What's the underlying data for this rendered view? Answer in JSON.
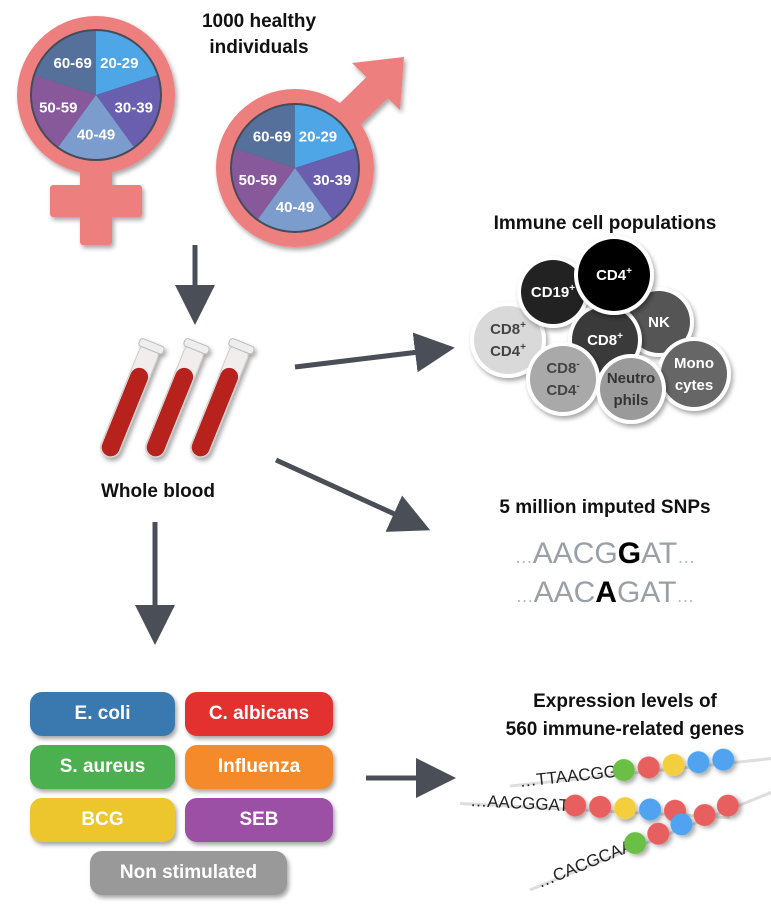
{
  "title": "1000 healthy individuals",
  "title_line1": "1000 healthy",
  "title_line2": "individuals",
  "age_groups": [
    "20-29",
    "30-39",
    "40-49",
    "50-59",
    "60-69"
  ],
  "age_colors": [
    "#4ea6e6",
    "#6a5eae",
    "#7b9ccd",
    "#87599a",
    "#55719b"
  ],
  "symbol_color": "#ee7f7f",
  "whole_blood": "Whole blood",
  "immune_title": "Immune cell populations",
  "cells": [
    {
      "name": "CD19",
      "sup": "+",
      "color": "#222222",
      "text": "#ffffff"
    },
    {
      "name": "CD4",
      "sup": "+",
      "color": "#000000",
      "text": "#ffffff"
    },
    {
      "name": "NK",
      "sup": "",
      "color": "#555555",
      "text": "#ffffff"
    },
    {
      "name": "CD8",
      "sup": "+",
      "color": "#3a3a3a",
      "text": "#ffffff"
    },
    {
      "name": "CD8",
      "sup": "+",
      "name2": "CD4",
      "sup2": "+",
      "color": "#d9d9d9",
      "text": "#444444"
    },
    {
      "name": "CD8",
      "sup": "-",
      "name2": "CD4",
      "sup2": "-",
      "color": "#a9a9a9",
      "text": "#444444"
    },
    {
      "name": "Neutro",
      "name2": "phils",
      "sup": "",
      "color": "#9a9a9a",
      "text": "#333333"
    },
    {
      "name": "Mono",
      "name2": "cytes",
      "sup": "",
      "color": "#666666",
      "text": "#ffffff"
    }
  ],
  "snp_title": "5 million imputed SNPs",
  "snps": [
    {
      "pre": "AACG",
      "alt": "G",
      "post": "AT"
    },
    {
      "pre": "AAC",
      "alt": "A",
      "post": "GAT"
    }
  ],
  "stimuli": [
    {
      "label": "E. coli",
      "color": "#3a78b0"
    },
    {
      "label": "C. albicans",
      "color": "#e3312f"
    },
    {
      "label": "S. aureus",
      "color": "#4caf50"
    },
    {
      "label": "Influenza",
      "color": "#f58a2a"
    },
    {
      "label": "BCG",
      "color": "#ecc62c"
    },
    {
      "label": "SEB",
      "color": "#9b4fa5"
    },
    {
      "label": "Non stimulated",
      "color": "#999999"
    }
  ],
  "expr_title1": "Expression levels of",
  "expr_title2": "560 immune-related genes",
  "genes": [
    {
      "seq": "…TTAACGG",
      "dots": [
        "#6bbf44",
        "#e85f5f",
        "#f4cf3c",
        "#4fa3f0",
        "#4fa3f0"
      ]
    },
    {
      "seq": "…AACGGAT",
      "dots": [
        "#e85f5f",
        "#e85f5f",
        "#f4cf3c",
        "#4fa3f0",
        "#e85f5f"
      ]
    },
    {
      "seq": "…CACGCAA",
      "dots": [
        "#6bbf44",
        "#e85f5f",
        "#4fa3f0",
        "#e85f5f",
        "#e85f5f"
      ]
    }
  ]
}
